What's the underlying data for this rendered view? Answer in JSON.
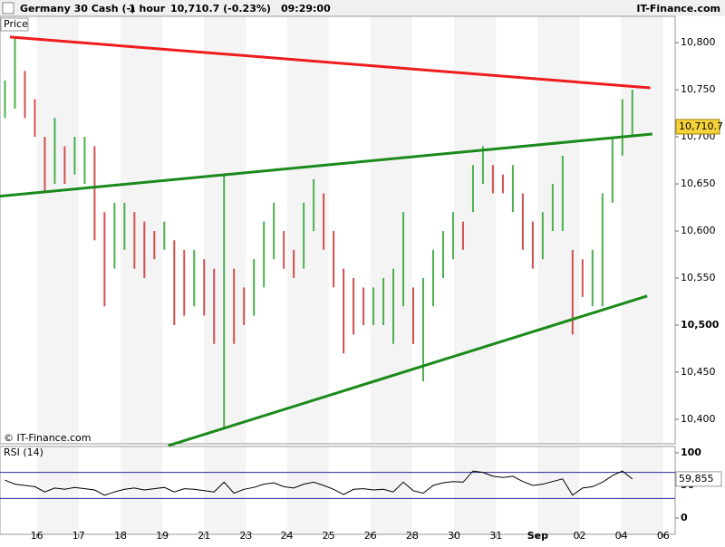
{
  "header": {
    "symbol": "Germany 30 Cash (-)",
    "interval": "1 hour",
    "quote": "10,710.7 (-0.23%)",
    "time": "09:29:00",
    "brand": "IT-Finance.com"
  },
  "chart_data": [
    {
      "type": "hilo",
      "panel_label": "Price",
      "watermark": "© IT-Finance.com",
      "xlim": [
        -0.5,
        67.3
      ],
      "ylim": [
        10374,
        10828
      ],
      "xticks": [
        {
          "value": 3.2,
          "label": "16"
        },
        {
          "value": 7.4,
          "label": "17"
        },
        {
          "value": 11.6,
          "label": "18"
        },
        {
          "value": 15.8,
          "label": "19"
        },
        {
          "value": 20.0,
          "label": "21"
        },
        {
          "value": 24.2,
          "label": "23"
        },
        {
          "value": 28.3,
          "label": "24"
        },
        {
          "value": 32.5,
          "label": "25"
        },
        {
          "value": 36.7,
          "label": "26"
        },
        {
          "value": 40.9,
          "label": "28"
        },
        {
          "value": 45.1,
          "label": "30"
        },
        {
          "value": 49.3,
          "label": "31"
        },
        {
          "value": 53.5,
          "label": "Sep"
        },
        {
          "value": 57.7,
          "label": "02"
        },
        {
          "value": 61.9,
          "label": "04"
        },
        {
          "value": 66.1,
          "label": "06"
        }
      ],
      "yticks": [
        {
          "value": 10400,
          "label": "10,400"
        },
        {
          "value": 10450,
          "label": "10,450"
        },
        {
          "value": 10500,
          "label": "10,500"
        },
        {
          "value": 10550,
          "label": "10,550"
        },
        {
          "value": 10600,
          "label": "10,600"
        },
        {
          "value": 10650,
          "label": "10,650"
        },
        {
          "value": 10700,
          "label": "10,700"
        },
        {
          "value": 10750,
          "label": "10,750"
        },
        {
          "value": 10800,
          "label": "10,800"
        }
      ],
      "series": [
        {
          "up_color": "#4caf50",
          "down_color": "#d05050",
          "high": [
            10760,
            10805,
            10770,
            10740,
            10700,
            10720,
            10690,
            10700,
            10700,
            10690,
            10620,
            10630,
            10630,
            10620,
            10610,
            10600,
            10610,
            10590,
            10580,
            10580,
            10570,
            10560,
            10660,
            10560,
            10540,
            10570,
            10610,
            10630,
            10600,
            10580,
            10630,
            10655,
            10640,
            10600,
            10560,
            10550,
            10540,
            10540,
            10550,
            10560,
            10620,
            10540,
            10550,
            10580,
            10600,
            10620,
            10610,
            10670,
            10690,
            10670,
            10660,
            10670,
            10640,
            10610,
            10620,
            10650,
            10680,
            10580,
            10570,
            10580,
            10640,
            10700,
            10740,
            10750
          ],
          "low": [
            10720,
            10730,
            10720,
            10700,
            10640,
            10650,
            10650,
            10660,
            10650,
            10590,
            10520,
            10560,
            10580,
            10560,
            10550,
            10570,
            10580,
            10500,
            10510,
            10520,
            10510,
            10480,
            10390,
            10480,
            10500,
            10510,
            10540,
            10570,
            10560,
            10550,
            10560,
            10600,
            10580,
            10540,
            10470,
            10490,
            10500,
            10500,
            10500,
            10480,
            10520,
            10480,
            10440,
            10520,
            10550,
            10570,
            10580,
            10620,
            10650,
            10640,
            10640,
            10620,
            10580,
            10560,
            10570,
            10600,
            10600,
            10490,
            10530,
            10520,
            10520,
            10630,
            10680,
            10700
          ]
        }
      ],
      "trendlines": [
        {
          "color": "#ee1c1c",
          "x": [
            0.5,
            64.8
          ],
          "y": [
            10806,
            10752
          ]
        },
        {
          "color": "#1a8a1a",
          "x": [
            -0.5,
            65
          ],
          "y": [
            10637,
            10703
          ]
        },
        {
          "color": "#1a8a1a",
          "x": [
            16.4,
            64.5
          ],
          "y": [
            10372,
            10531
          ]
        }
      ],
      "last_price": {
        "value": 10710.7,
        "label": "10,710.7"
      }
    },
    {
      "type": "line",
      "panel_label": "RSI (14)",
      "color": "#000000",
      "band_color": "#2a2aa0",
      "ylim": [
        -25,
        109.7
      ],
      "yticks": [
        0,
        50,
        100
      ],
      "bands": [
        30,
        70
      ],
      "values": [
        58,
        52,
        50,
        48,
        40,
        46,
        44,
        47,
        45,
        43,
        35,
        40,
        44,
        46,
        43,
        45,
        47,
        40,
        45,
        44,
        42,
        40,
        55,
        38,
        44,
        47,
        52,
        54,
        48,
        46,
        52,
        55,
        50,
        44,
        36,
        44,
        45,
        43,
        44,
        40,
        55,
        42,
        38,
        50,
        54,
        56,
        55,
        72,
        70,
        64,
        62,
        64,
        56,
        50,
        52,
        56,
        60,
        35,
        46,
        48,
        55,
        65,
        72,
        59.855
      ],
      "last_label": {
        "value": 59.855,
        "label": "59,855"
      }
    }
  ]
}
